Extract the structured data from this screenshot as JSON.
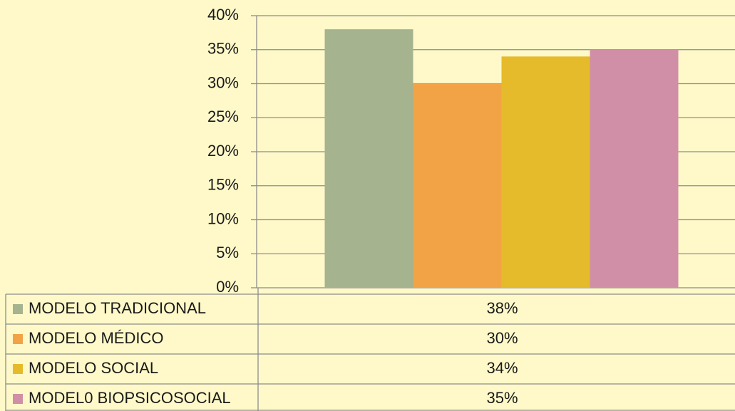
{
  "chart_data": {
    "type": "bar",
    "series": [
      {
        "name": "MODELO TRADICIONAL",
        "color": "#a5b38f",
        "values": [
          38
        ],
        "value_labels": [
          "38%"
        ]
      },
      {
        "name": "MODELO MÉDICO",
        "color": "#f2a346",
        "values": [
          30
        ],
        "value_labels": [
          "30%"
        ]
      },
      {
        "name": "MODELO SOCIAL",
        "color": "#e5bb2b",
        "values": [
          34
        ],
        "value_labels": [
          "34%"
        ]
      },
      {
        "name": "MODEL0 BIOPSICOSOCIAL",
        "color": "#d08fa6",
        "values": [
          35
        ],
        "value_labels": [
          "35%"
        ]
      }
    ],
    "ylim": [
      0,
      40
    ],
    "yticks": [
      {
        "value": 0,
        "label": "0%"
      },
      {
        "value": 5,
        "label": "5%"
      },
      {
        "value": 10,
        "label": "10%"
      },
      {
        "value": 15,
        "label": "15%"
      },
      {
        "value": 20,
        "label": "20%"
      },
      {
        "value": 25,
        "label": "25%"
      },
      {
        "value": 30,
        "label": "30%"
      },
      {
        "value": 35,
        "label": "35%"
      },
      {
        "value": 40,
        "label": "40%"
      }
    ],
    "grid": true,
    "data_table": true
  }
}
